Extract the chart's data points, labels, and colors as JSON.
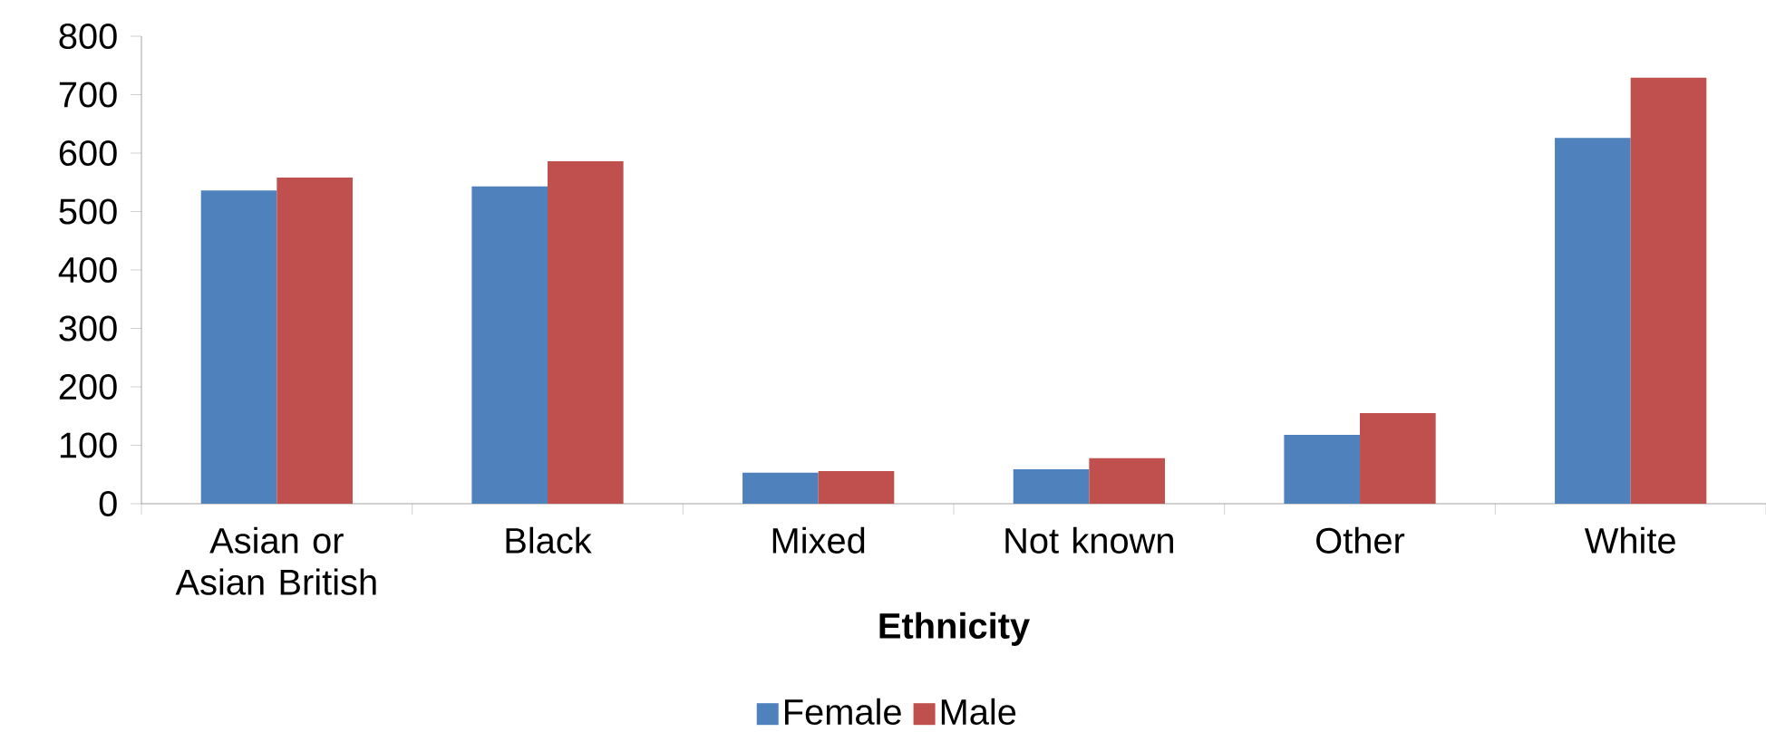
{
  "chart_data": {
    "type": "bar",
    "xlabel": "Ethnicity",
    "categories": [
      "Asian or Asian British",
      "Black",
      "Mixed",
      "Not known",
      "Other",
      "White"
    ],
    "series": [
      {
        "name": "Female",
        "color": "#4f81bd",
        "values": [
          536,
          543,
          53,
          59,
          118,
          626
        ]
      },
      {
        "name": "Male",
        "color": "#c0504d",
        "values": [
          558,
          586,
          56,
          78,
          155,
          729
        ]
      }
    ],
    "ylim": [
      0,
      800
    ],
    "yticks": [
      0,
      100,
      200,
      300,
      400,
      500,
      600,
      700,
      800
    ],
    "legend": "bottom"
  }
}
